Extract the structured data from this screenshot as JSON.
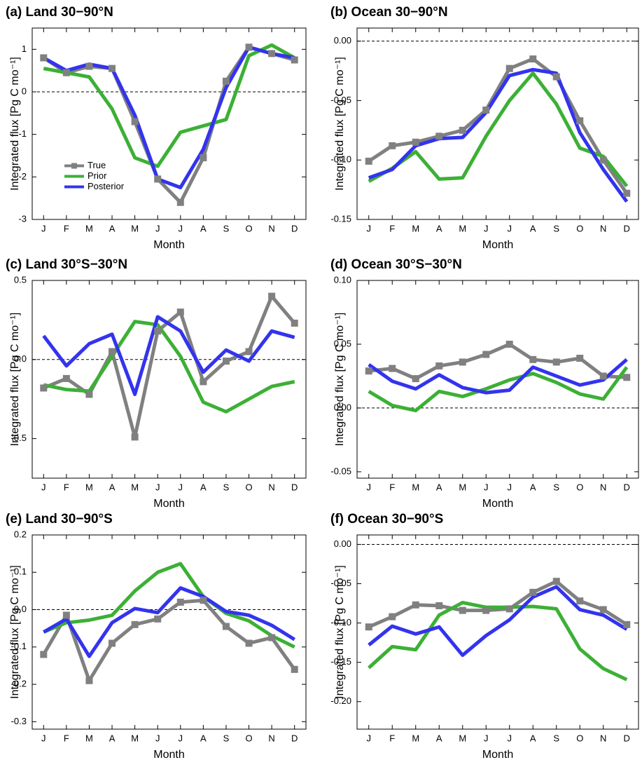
{
  "chart_data": [
    {
      "type": "line",
      "title": "(a) Land 30−90°N",
      "xlabel": "Month",
      "ylabel": "Integrated flux [Pg C mo⁻¹]",
      "categories": [
        "J",
        "F",
        "M",
        "A",
        "M",
        "J",
        "J",
        "A",
        "S",
        "O",
        "N",
        "D"
      ],
      "ylim": [
        -3,
        1.5
      ],
      "yticks": [
        1,
        0,
        -1,
        -2,
        -3
      ],
      "zero_line": true,
      "legend": "lower left",
      "series": [
        {
          "name": "True",
          "color": "#808080",
          "marker": "square",
          "values": [
            0.8,
            0.45,
            0.6,
            0.55,
            -0.7,
            -2.05,
            -2.6,
            -1.55,
            0.25,
            1.05,
            0.9,
            0.75
          ]
        },
        {
          "name": "Prior",
          "color": "#3cb035",
          "values": [
            0.55,
            0.45,
            0.35,
            -0.4,
            -1.55,
            -1.75,
            -0.95,
            -0.8,
            -0.65,
            0.85,
            1.1,
            0.8
          ]
        },
        {
          "name": "Posterior",
          "color": "#3333ee",
          "values": [
            0.8,
            0.5,
            0.65,
            0.55,
            -0.55,
            -2.05,
            -2.25,
            -1.35,
            0.1,
            1.05,
            0.9,
            0.8
          ]
        }
      ]
    },
    {
      "type": "line",
      "title": "(b) Ocean 30−90°N",
      "xlabel": "Month",
      "ylabel": "Integrated flux [Pg C mo⁻¹]",
      "categories": [
        "J",
        "F",
        "M",
        "A",
        "M",
        "J",
        "J",
        "A",
        "S",
        "O",
        "N",
        "D"
      ],
      "ylim": [
        -0.15,
        0.011
      ],
      "yticks": [
        {
          "value": 0,
          "label": "0.00"
        },
        -0.05,
        {
          "value": -0.1,
          "label": "-0.10"
        },
        -0.15
      ],
      "zero_line": true,
      "series": [
        {
          "color": "#808080",
          "marker": "square",
          "values": [
            -0.101,
            -0.088,
            -0.085,
            -0.08,
            -0.075,
            -0.058,
            -0.023,
            -0.015,
            -0.03,
            -0.067,
            -0.1,
            -0.128
          ]
        },
        {
          "color": "#3cb035",
          "values": [
            -0.118,
            -0.107,
            -0.093,
            -0.116,
            -0.115,
            -0.08,
            -0.05,
            -0.027,
            -0.053,
            -0.09,
            -0.097,
            -0.122
          ]
        },
        {
          "color": "#3333ee",
          "values": [
            -0.115,
            -0.108,
            -0.088,
            -0.082,
            -0.081,
            -0.06,
            -0.029,
            -0.024,
            -0.027,
            -0.077,
            -0.108,
            -0.135
          ]
        }
      ]
    },
    {
      "type": "line",
      "title": "(c) Land 30°S−30°N",
      "xlabel": "Month",
      "ylabel": "Integrated flux [Pg C mo⁻¹]",
      "categories": [
        "J",
        "F",
        "M",
        "A",
        "M",
        "J",
        "J",
        "A",
        "S",
        "O",
        "N",
        "D"
      ],
      "ylim": [
        -0.75,
        0.5
      ],
      "yticks": [
        0.5,
        {
          "value": 0,
          "label": "0.0"
        },
        -0.5
      ],
      "zero_line": true,
      "series": [
        {
          "color": "#808080",
          "marker": "square",
          "values": [
            -0.18,
            -0.12,
            -0.22,
            0.05,
            -0.49,
            0.18,
            0.3,
            -0.14,
            -0.01,
            0.05,
            0.4,
            0.23
          ]
        },
        {
          "color": "#3cb035",
          "values": [
            -0.16,
            -0.19,
            -0.2,
            0.02,
            0.24,
            0.22,
            0.02,
            -0.27,
            -0.33,
            -0.25,
            -0.17,
            -0.14
          ]
        },
        {
          "color": "#3333ee",
          "values": [
            0.15,
            -0.04,
            0.1,
            0.16,
            -0.22,
            0.27,
            0.18,
            -0.08,
            0.06,
            -0.01,
            0.18,
            0.14
          ]
        }
      ]
    },
    {
      "type": "line",
      "title": "(d) Ocean 30°S−30°N",
      "xlabel": "Month",
      "ylabel": "Integrated flux [Pg C mo⁻¹]",
      "categories": [
        "J",
        "F",
        "M",
        "A",
        "M",
        "J",
        "J",
        "A",
        "S",
        "O",
        "N",
        "D"
      ],
      "ylim": [
        -0.055,
        0.1
      ],
      "yticks": [
        {
          "value": 0.1,
          "label": "0.10"
        },
        0.05,
        {
          "value": 0,
          "label": "0.00"
        },
        -0.05
      ],
      "zero_line": true,
      "series": [
        {
          "color": "#808080",
          "marker": "square",
          "values": [
            0.029,
            0.031,
            0.023,
            0.033,
            0.036,
            0.042,
            0.05,
            0.038,
            0.036,
            0.039,
            0.025,
            0.024
          ]
        },
        {
          "color": "#3cb035",
          "values": [
            0.013,
            0.002,
            -0.002,
            0.013,
            0.009,
            0.015,
            0.022,
            0.027,
            0.02,
            0.011,
            0.007,
            0.032
          ]
        },
        {
          "color": "#3333ee",
          "values": [
            0.034,
            0.021,
            0.015,
            0.026,
            0.016,
            0.012,
            0.014,
            0.032,
            0.025,
            0.018,
            0.022,
            0.038
          ]
        }
      ]
    },
    {
      "type": "line",
      "title": "(e) Land 30−90°S",
      "xlabel": "Month",
      "ylabel": "Integrated flux [Pg C mo⁻¹]",
      "categories": [
        "J",
        "F",
        "M",
        "A",
        "M",
        "J",
        "J",
        "A",
        "S",
        "O",
        "N",
        "D"
      ],
      "ylim": [
        -0.32,
        0.2
      ],
      "yticks": [
        0.2,
        0.1,
        {
          "value": 0,
          "label": "0.0"
        },
        -0.1,
        -0.2,
        -0.3
      ],
      "zero_line": true,
      "series": [
        {
          "color": "#808080",
          "marker": "square",
          "values": [
            -0.12,
            -0.015,
            -0.19,
            -0.09,
            -0.04,
            -0.025,
            0.02,
            0.025,
            -0.045,
            -0.09,
            -0.075,
            -0.16
          ]
        },
        {
          "color": "#3cb035",
          "values": [
            -0.06,
            -0.035,
            -0.028,
            -0.015,
            0.05,
            0.1,
            0.123,
            0.035,
            -0.01,
            -0.03,
            -0.07,
            -0.1
          ]
        },
        {
          "color": "#3333ee",
          "values": [
            -0.06,
            -0.025,
            -0.125,
            -0.035,
            0.003,
            -0.008,
            0.058,
            0.035,
            -0.005,
            -0.015,
            -0.042,
            -0.08
          ]
        }
      ]
    },
    {
      "type": "line",
      "title": "(f) Ocean 30−90°S",
      "xlabel": "Month",
      "ylabel": "Integrated flux [Pg C mo⁻¹]",
      "categories": [
        "J",
        "F",
        "M",
        "A",
        "M",
        "J",
        "J",
        "A",
        "S",
        "O",
        "N",
        "D"
      ],
      "ylim": [
        -0.235,
        0.012
      ],
      "yticks": [
        {
          "value": 0,
          "label": "0.00"
        },
        -0.05,
        {
          "value": -0.1,
          "label": "-0.10"
        },
        -0.15,
        {
          "value": -0.2,
          "label": "-0.20"
        }
      ],
      "zero_line": true,
      "series": [
        {
          "color": "#808080",
          "marker": "square",
          "values": [
            -0.105,
            -0.092,
            -0.077,
            -0.078,
            -0.084,
            -0.084,
            -0.082,
            -0.061,
            -0.047,
            -0.072,
            -0.083,
            -0.102
          ]
        },
        {
          "color": "#3cb035",
          "values": [
            -0.157,
            -0.13,
            -0.134,
            -0.09,
            -0.074,
            -0.08,
            -0.08,
            -0.079,
            -0.082,
            -0.133,
            -0.158,
            -0.172
          ]
        },
        {
          "color": "#3333ee",
          "values": [
            -0.128,
            -0.104,
            -0.114,
            -0.105,
            -0.141,
            -0.116,
            -0.096,
            -0.067,
            -0.054,
            -0.083,
            -0.09,
            -0.108
          ]
        }
      ]
    }
  ]
}
